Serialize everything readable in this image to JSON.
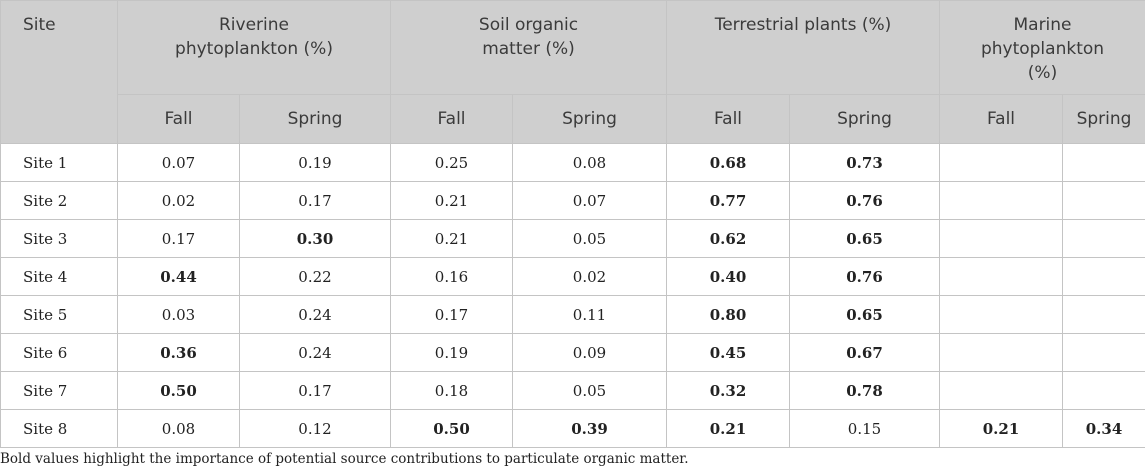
{
  "header": {
    "site": "Site",
    "groups": [
      {
        "label_line1": "Riverine",
        "label_line2": "phytoplankton (%)"
      },
      {
        "label_line1": "Soil organic",
        "label_line2": "matter (%)"
      },
      {
        "label_line1": "Terrestrial plants (%)",
        "label_line2": ""
      },
      {
        "label_line1": "Marine",
        "label_line2": "phytoplankton",
        "label_line3": "(%)"
      }
    ],
    "sub": [
      "Fall",
      "Spring"
    ]
  },
  "rows": [
    {
      "site": "Site 1",
      "v": [
        "0.07",
        "0.19",
        "0.25",
        "0.08",
        "0.68",
        "0.73",
        "",
        ""
      ]
    },
    {
      "site": "Site 2",
      "v": [
        "0.02",
        "0.17",
        "0.21",
        "0.07",
        "0.77",
        "0.76",
        "",
        ""
      ]
    },
    {
      "site": "Site 3",
      "v": [
        "0.17",
        "0.30",
        "0.21",
        "0.05",
        "0.62",
        "0.65",
        "",
        ""
      ]
    },
    {
      "site": "Site 4",
      "v": [
        "0.44",
        "0.22",
        "0.16",
        "0.02",
        "0.40",
        "0.76",
        "",
        ""
      ]
    },
    {
      "site": "Site 5",
      "v": [
        "0.03",
        "0.24",
        "0.17",
        "0.11",
        "0.80",
        "0.65",
        "",
        ""
      ]
    },
    {
      "site": "Site 6",
      "v": [
        "0.36",
        "0.24",
        "0.19",
        "0.09",
        "0.45",
        "0.67",
        "",
        ""
      ]
    },
    {
      "site": "Site 7",
      "v": [
        "0.50",
        "0.17",
        "0.18",
        "0.05",
        "0.32",
        "0.78",
        "",
        ""
      ]
    },
    {
      "site": "Site 8",
      "v": [
        "0.08",
        "0.12",
        "0.50",
        "0.39",
        "0.21",
        "0.15",
        "0.21",
        "0.34"
      ]
    }
  ],
  "bold_cells": [
    [
      4,
      5
    ],
    [
      4,
      5
    ],
    [
      1,
      4,
      5
    ],
    [
      0,
      4,
      5
    ],
    [
      4,
      5
    ],
    [
      0,
      4,
      5
    ],
    [
      0,
      4,
      5
    ],
    [
      2,
      3,
      4,
      6,
      7
    ]
  ],
  "footnote": "Bold values highlight the importance of potential source contributions to particulate organic matter."
}
